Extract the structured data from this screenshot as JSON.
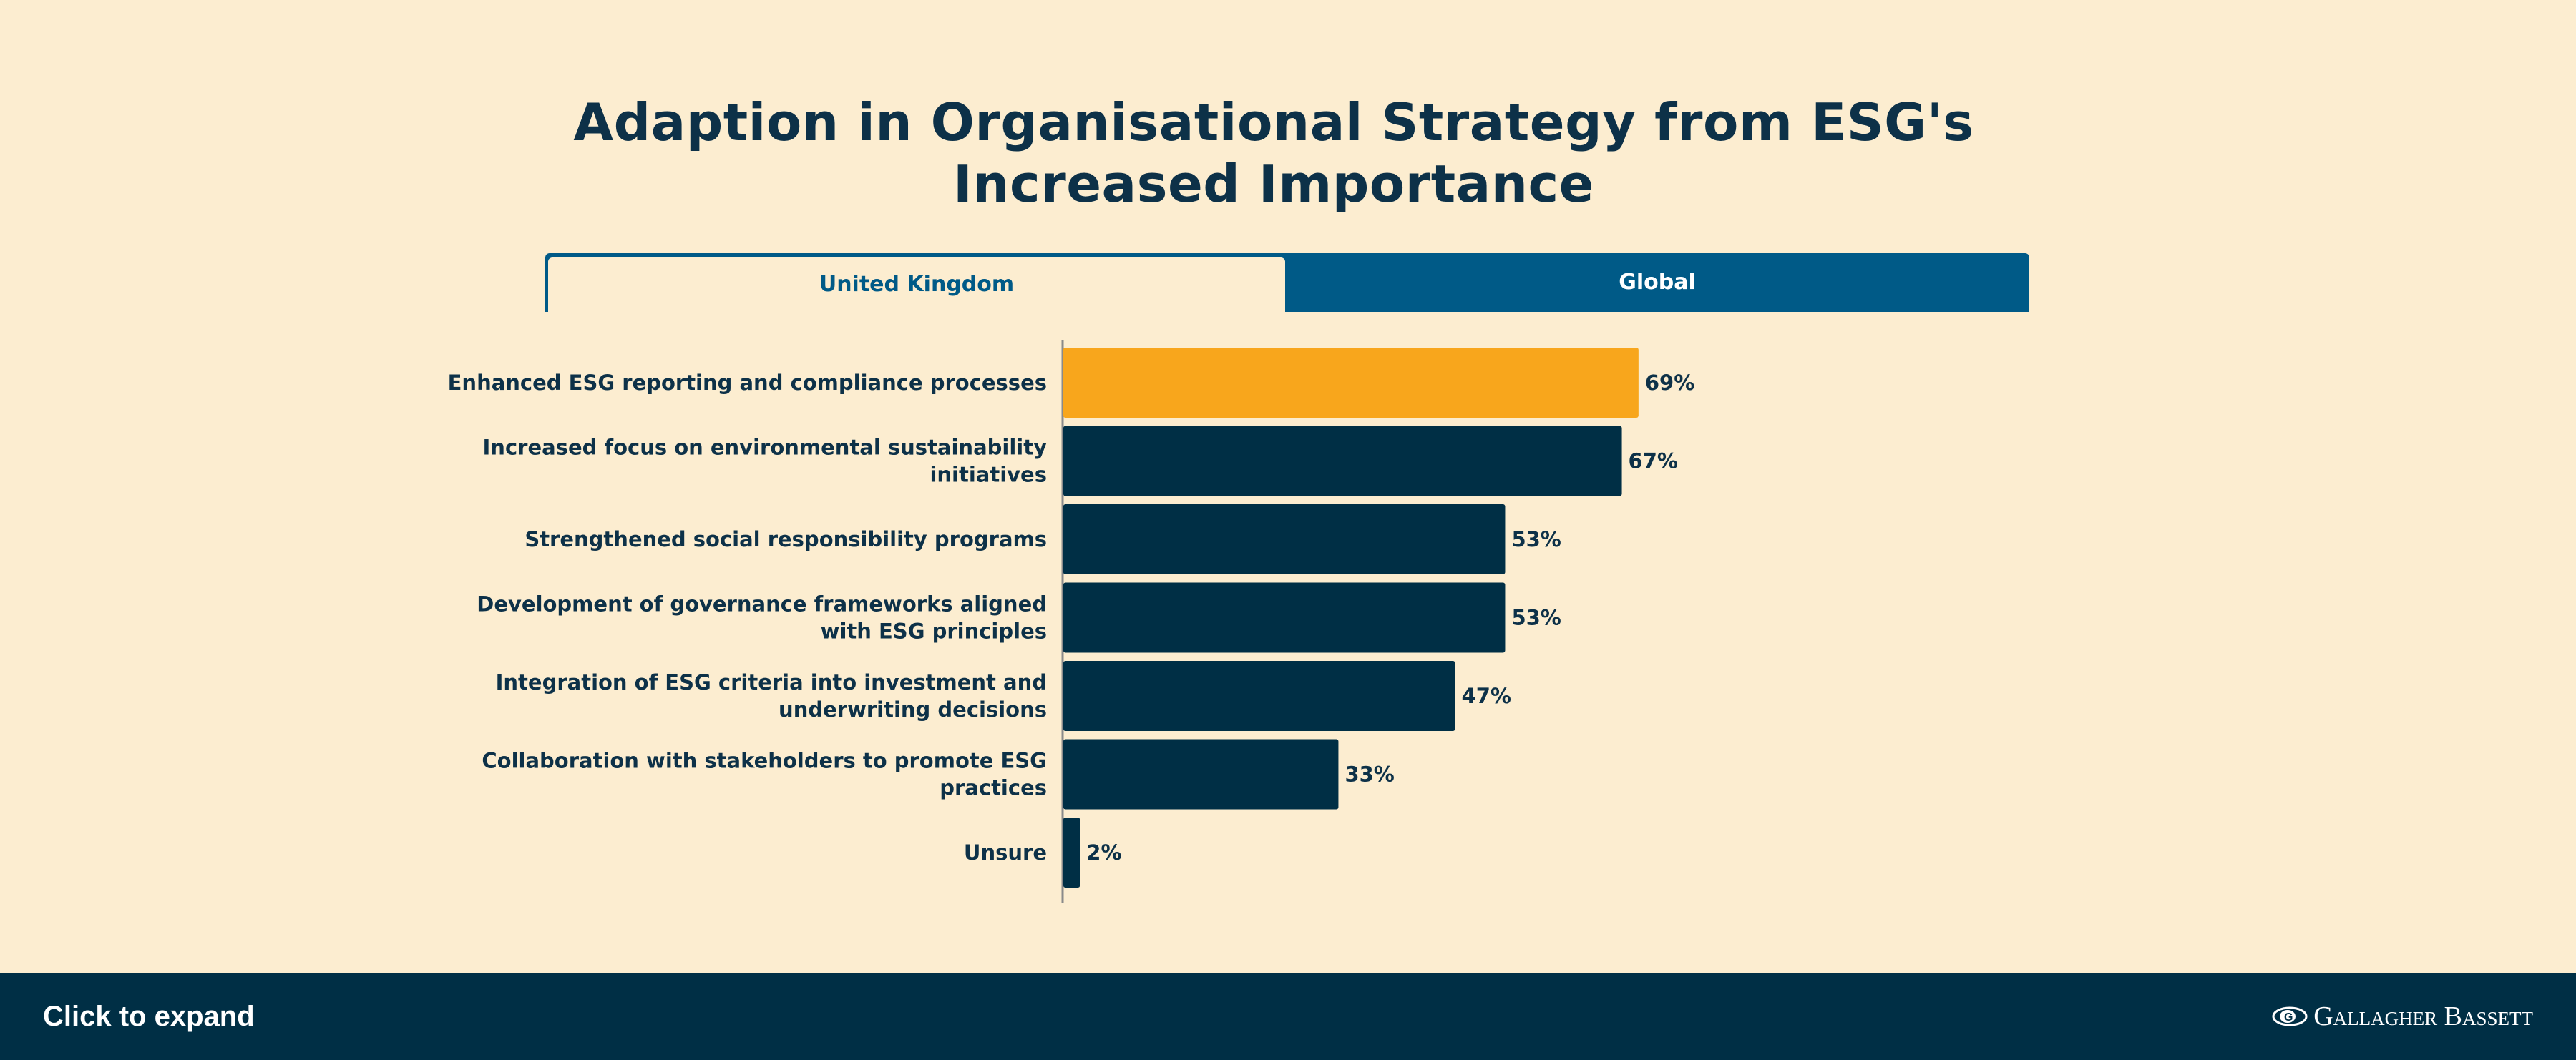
{
  "tabs": [
    {
      "label": "United Kingdom",
      "active": true
    },
    {
      "label": "Global",
      "active": false
    }
  ],
  "chart_data": {
    "type": "bar",
    "orientation": "horizontal",
    "title": "Adaption in Organisational Strategy from ESG's Increased Importance",
    "title_lines": [
      "Adaption in Organisational Strategy from ESG's",
      "Increased Importance"
    ],
    "categories": [
      [
        "Enhanced ESG reporting and compliance processes"
      ],
      [
        "Increased focus on environmental sustainability",
        "initiatives"
      ],
      [
        "Strengthened social responsibility programs"
      ],
      [
        "Development of governance frameworks aligned",
        "with ESG principles"
      ],
      [
        "Integration of ESG criteria into investment and",
        "underwriting decisions"
      ],
      [
        "Collaboration with stakeholders to promote ESG",
        "practices"
      ],
      [
        "Unsure"
      ]
    ],
    "values": [
      69,
      67,
      53,
      53,
      47,
      33,
      2
    ],
    "value_labels": [
      "69%",
      "67%",
      "53%",
      "53%",
      "47%",
      "33%",
      "2%"
    ],
    "xlim": [
      0,
      100
    ],
    "highlight_index": 0,
    "colors": {
      "highlight": "#f8a61c",
      "bar": "#002f45"
    },
    "grid": false
  },
  "footer": {
    "expand_label": "Click to expand",
    "brand": "Gallagher Bassett"
  }
}
